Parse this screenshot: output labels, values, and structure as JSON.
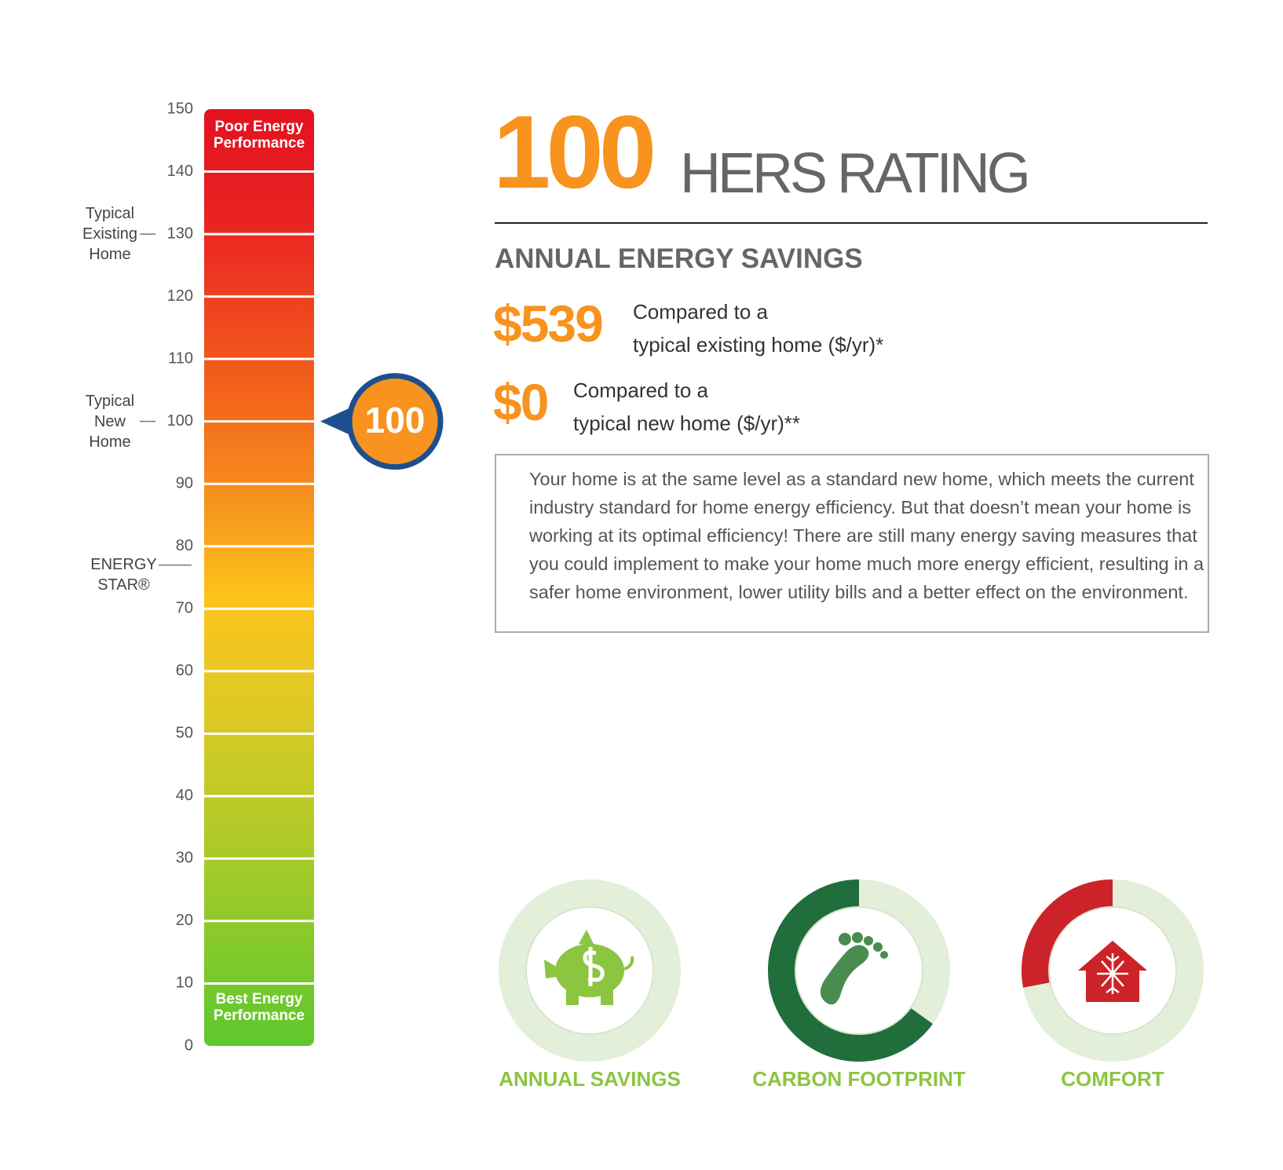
{
  "scale": {
    "ylim": [
      0,
      150
    ],
    "yticks": [
      0,
      10,
      20,
      30,
      40,
      50,
      60,
      70,
      80,
      90,
      100,
      110,
      120,
      130,
      140,
      150
    ],
    "top_label": "Poor Energy Performance",
    "bottom_label": "Best Energy Performance",
    "annotations": [
      {
        "label": "Typical Existing Home",
        "value": 130
      },
      {
        "label": "Typical New Home",
        "value": 100
      },
      {
        "label": "ENERGY STAR®",
        "value": 77
      }
    ]
  },
  "rating": {
    "value": 100,
    "label": "HERS RATING"
  },
  "savings": {
    "title": "ANNUAL ENERGY SAVINGS",
    "items": [
      {
        "amount": "$539",
        "text": [
          "Compared to a",
          "typical existing home ($/yr)*"
        ]
      },
      {
        "amount": "$0",
        "text": [
          "Compared to a",
          "typical new home ($/yr)**"
        ]
      }
    ]
  },
  "description": "Your home is at the same level as a standard new home, which meets the current industry standard for home energy efficiency. But that doesn’t mean your home is working at its optimal efficiency! There are still many energy saving measures that you could implement to make your home much more energy efficient, resulting in a safer home environment, lower utility bills and a better effect on the environment.",
  "gauges": [
    {
      "label": "ANNUAL SAVINGS",
      "percent": 0,
      "color": "#8cc540"
    },
    {
      "label": "CARBON FOOTPRINT",
      "percent": 65,
      "color": "#1f6e3b"
    },
    {
      "label": "COMFORT",
      "percent": 28,
      "color": "#cc2229"
    }
  ]
}
